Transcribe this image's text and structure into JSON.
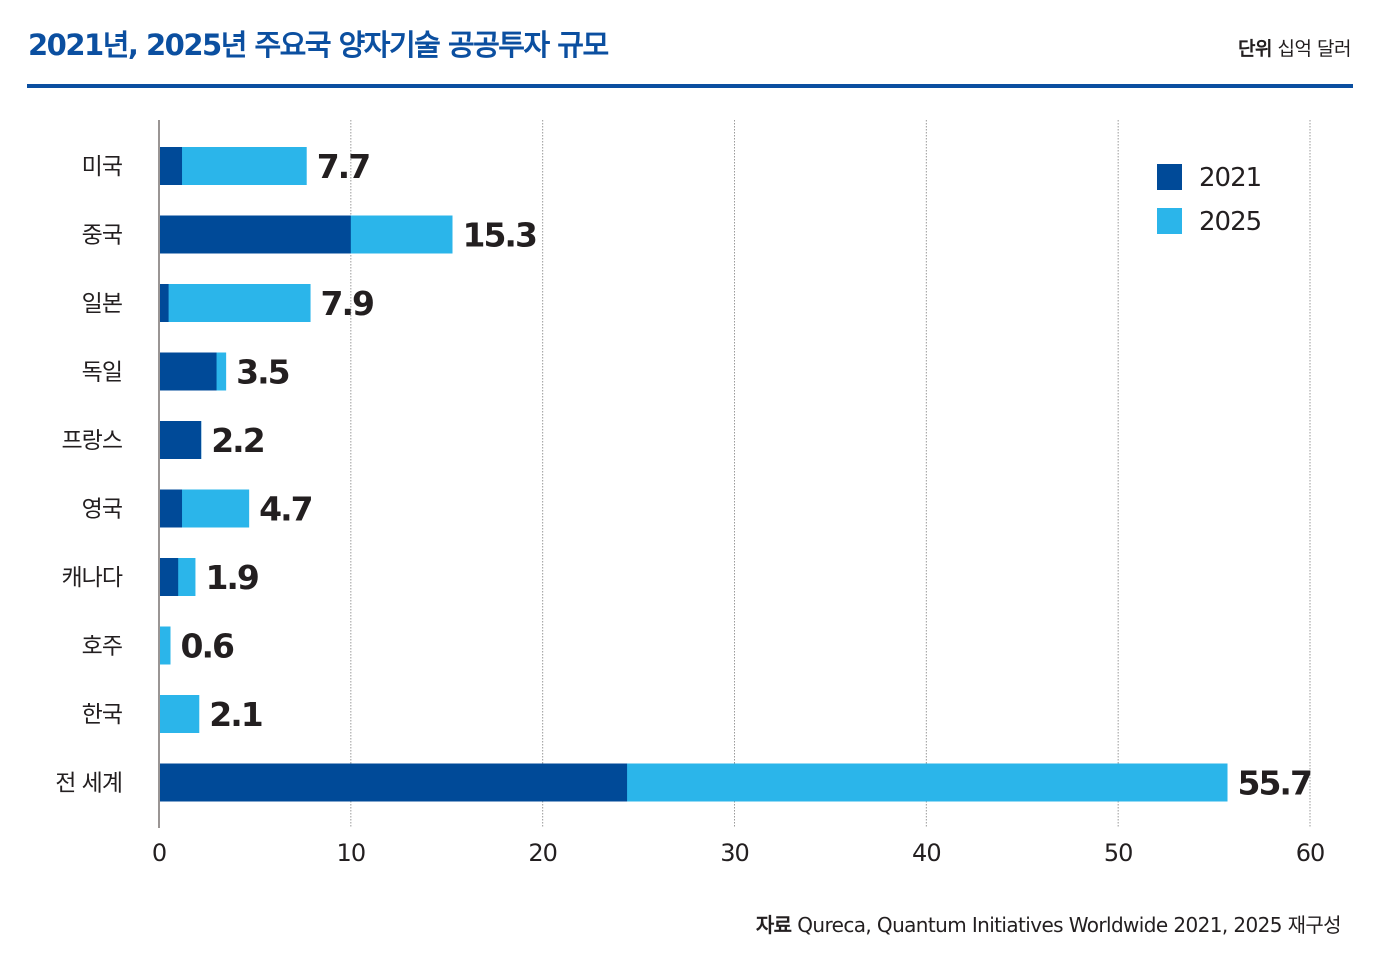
{
  "header": {
    "title": "2021년, 2025년 주요국 양자기술 공공투자 규모",
    "unit_label": "단위",
    "unit_value": "십억 달러"
  },
  "footer": {
    "source_label": "자료",
    "source_text": "Qureca, Quantum Initiatives Worldwide 2021, 2025 재구성"
  },
  "colors": {
    "title": "#0b4fa0",
    "series_2021": "#004a98",
    "series_2025": "#2bb5ea",
    "text": "#231f20",
    "grid": "#9a9a9a",
    "axis": "#9a9594"
  },
  "chart_data": {
    "type": "bar",
    "orientation": "horizontal",
    "stacked_overlay": true,
    "title": "2021년, 2025년 주요국 양자기술 공공투자 규모",
    "unit": "십억 달러",
    "categories": [
      "미국",
      "중국",
      "일본",
      "독일",
      "프랑스",
      "영국",
      "캐나다",
      "호주",
      "한국",
      "전 세계"
    ],
    "series": [
      {
        "name": "2021",
        "values": [
          1.2,
          10.0,
          0.5,
          3.0,
          2.2,
          1.2,
          1.0,
          0,
          0,
          24.4
        ]
      },
      {
        "name": "2025",
        "values": [
          7.7,
          15.3,
          7.9,
          3.5,
          2.2,
          4.7,
          1.9,
          0.6,
          2.1,
          55.7
        ]
      }
    ],
    "data_labels": [
      "7.7",
      "15.3",
      "7.9",
      "3.5",
      "2.2",
      "4.7",
      "1.9",
      "0.6",
      "2.1",
      "55.7"
    ],
    "xlim": [
      0,
      60
    ],
    "xticks": [
      0,
      10,
      20,
      30,
      40,
      50,
      60
    ],
    "xlabel": "",
    "ylabel": "",
    "grid": "vertical dotted",
    "legend": {
      "entries": [
        "2021",
        "2025"
      ],
      "placement": "top-right"
    }
  }
}
